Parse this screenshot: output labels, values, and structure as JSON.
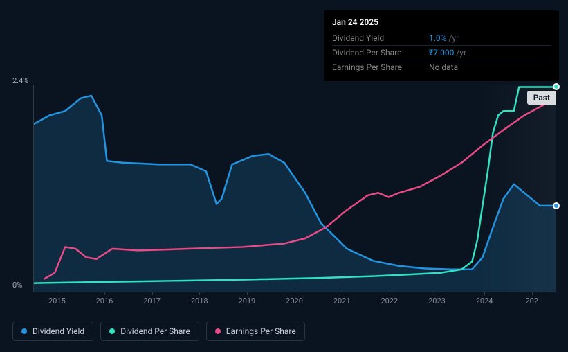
{
  "tooltip": {
    "date": "Jan 24 2025",
    "rows": [
      {
        "label": "Dividend Yield",
        "value": "1.0%",
        "unit": "/yr",
        "value_color": "#2394df"
      },
      {
        "label": "Dividend Per Share",
        "value": "₹7.000",
        "unit": "/yr",
        "value_color": "#2394df"
      },
      {
        "label": "Earnings Per Share",
        "value": "No data",
        "unit": "",
        "value_color": "#888"
      }
    ]
  },
  "chart": {
    "type": "line",
    "background_color": "#0a1420",
    "grid_color": "#333b44",
    "ylim": [
      0,
      2.4
    ],
    "y_ticks": [
      {
        "value": 2.4,
        "label": "2.4%"
      },
      {
        "value": 0,
        "label": "0%"
      }
    ],
    "x_labels": [
      "2015",
      "2016",
      "2017",
      "2018",
      "2019",
      "2020",
      "2021",
      "2022",
      "2023",
      "2024",
      "202"
    ],
    "past_label": "Past",
    "series": [
      {
        "id": "dividend_yield",
        "label": "Dividend Yield",
        "color": "#2394df",
        "fill": true,
        "fill_color": "rgba(35,148,223,0.18)",
        "line_width": 2.5,
        "data": [
          [
            0,
            1.95
          ],
          [
            3,
            2.05
          ],
          [
            6,
            2.1
          ],
          [
            9,
            2.25
          ],
          [
            11,
            2.28
          ],
          [
            13,
            2.05
          ],
          [
            14,
            1.52
          ],
          [
            17,
            1.5
          ],
          [
            24,
            1.48
          ],
          [
            30,
            1.48
          ],
          [
            33,
            1.4
          ],
          [
            35,
            1.02
          ],
          [
            36,
            1.08
          ],
          [
            38,
            1.48
          ],
          [
            42,
            1.58
          ],
          [
            45,
            1.6
          ],
          [
            48,
            1.5
          ],
          [
            52,
            1.15
          ],
          [
            55,
            0.8
          ],
          [
            60,
            0.5
          ],
          [
            65,
            0.36
          ],
          [
            70,
            0.3
          ],
          [
            75,
            0.27
          ],
          [
            80,
            0.26
          ],
          [
            84,
            0.26
          ],
          [
            86,
            0.4
          ],
          [
            88,
            0.75
          ],
          [
            90,
            1.08
          ],
          [
            92,
            1.25
          ],
          [
            94,
            1.15
          ],
          [
            97,
            1.0
          ],
          [
            100,
            1.0
          ]
        ],
        "marker_end": {
          "y": 1.0,
          "color": "#2394df"
        }
      },
      {
        "id": "dividend_per_share",
        "label": "Dividend Per Share",
        "color": "#33e0c2",
        "fill": false,
        "line_width": 2.5,
        "data": [
          [
            0,
            0.1
          ],
          [
            20,
            0.12
          ],
          [
            40,
            0.14
          ],
          [
            55,
            0.16
          ],
          [
            65,
            0.18
          ],
          [
            72,
            0.2
          ],
          [
            78,
            0.22
          ],
          [
            82,
            0.26
          ],
          [
            84,
            0.35
          ],
          [
            85,
            0.6
          ],
          [
            86,
            1.0
          ],
          [
            87,
            1.4
          ],
          [
            88,
            1.85
          ],
          [
            89,
            2.05
          ],
          [
            90,
            2.1
          ],
          [
            92,
            2.1
          ],
          [
            93,
            2.38
          ],
          [
            100,
            2.38
          ]
        ],
        "marker_end": {
          "y": 2.38,
          "color": "#33e0c2"
        }
      },
      {
        "id": "earnings_per_share",
        "label": "Earnings Per Share",
        "color": "#e94b86",
        "fill": false,
        "line_width": 2.5,
        "data": [
          [
            2,
            0.15
          ],
          [
            4,
            0.22
          ],
          [
            6,
            0.52
          ],
          [
            8,
            0.5
          ],
          [
            10,
            0.4
          ],
          [
            12,
            0.38
          ],
          [
            15,
            0.5
          ],
          [
            20,
            0.48
          ],
          [
            30,
            0.5
          ],
          [
            40,
            0.52
          ],
          [
            48,
            0.56
          ],
          [
            52,
            0.62
          ],
          [
            56,
            0.75
          ],
          [
            60,
            0.95
          ],
          [
            64,
            1.12
          ],
          [
            66,
            1.15
          ],
          [
            68,
            1.1
          ],
          [
            70,
            1.15
          ],
          [
            74,
            1.22
          ],
          [
            78,
            1.35
          ],
          [
            82,
            1.5
          ],
          [
            86,
            1.7
          ],
          [
            90,
            1.88
          ],
          [
            94,
            2.05
          ],
          [
            98,
            2.18
          ],
          [
            100,
            2.22
          ]
        ]
      }
    ],
    "legend": [
      {
        "label": "Dividend Yield",
        "color": "#2394df"
      },
      {
        "label": "Dividend Per Share",
        "color": "#33e0c2"
      },
      {
        "label": "Earnings Per Share",
        "color": "#e94b86"
      }
    ]
  }
}
